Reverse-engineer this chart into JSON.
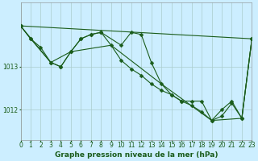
{
  "background_color": "#cceeff",
  "grid_color_v": "#aacccc",
  "grid_color_h": "#aacccc",
  "line_color": "#1a5c1a",
  "xlabel": "Graphe pression niveau de la mer (hPa)",
  "xlabel_fontsize": 6.5,
  "tick_fontsize": 5.5,
  "ylim": [
    1011.3,
    1014.5
  ],
  "xlim": [
    0,
    23
  ],
  "yticks": [
    1012,
    1013
  ],
  "xticks": [
    0,
    1,
    2,
    3,
    4,
    5,
    6,
    7,
    8,
    9,
    10,
    11,
    12,
    13,
    14,
    15,
    16,
    17,
    18,
    19,
    20,
    21,
    22,
    23
  ],
  "line1": {
    "x": [
      0,
      23
    ],
    "y": [
      1013.95,
      1013.65
    ]
  },
  "line2": {
    "x": [
      0,
      1,
      2,
      3,
      4,
      5,
      6,
      7,
      8,
      9,
      10,
      11,
      12,
      13,
      14,
      15,
      16,
      17,
      18,
      19,
      20,
      21,
      22,
      23
    ],
    "y": [
      1013.95,
      1013.65,
      1013.45,
      1013.1,
      1013.0,
      1013.35,
      1013.65,
      1013.75,
      1013.8,
      1013.5,
      1013.15,
      1012.95,
      1012.8,
      1012.6,
      1012.45,
      1012.35,
      1012.2,
      1012.1,
      1011.95,
      1011.75,
      1012.0,
      1012.2,
      1011.8,
      1013.65
    ]
  },
  "line3": {
    "x": [
      0,
      1,
      3,
      4,
      5,
      6,
      7,
      8,
      10,
      11,
      12,
      13,
      14,
      15,
      16,
      17,
      18,
      19,
      20,
      21,
      22,
      23
    ],
    "y": [
      1013.95,
      1013.65,
      1013.1,
      1013.0,
      1013.35,
      1013.65,
      1013.75,
      1013.8,
      1013.5,
      1013.8,
      1013.75,
      1013.1,
      1012.6,
      1012.35,
      1012.2,
      1012.2,
      1012.2,
      1011.75,
      1011.85,
      1012.15,
      1011.8,
      1013.65
    ]
  },
  "line4": {
    "x": [
      0,
      3,
      5,
      9,
      14,
      19,
      22,
      23
    ],
    "y": [
      1013.95,
      1013.1,
      1013.35,
      1013.5,
      1012.6,
      1011.75,
      1011.8,
      1013.65
    ]
  }
}
